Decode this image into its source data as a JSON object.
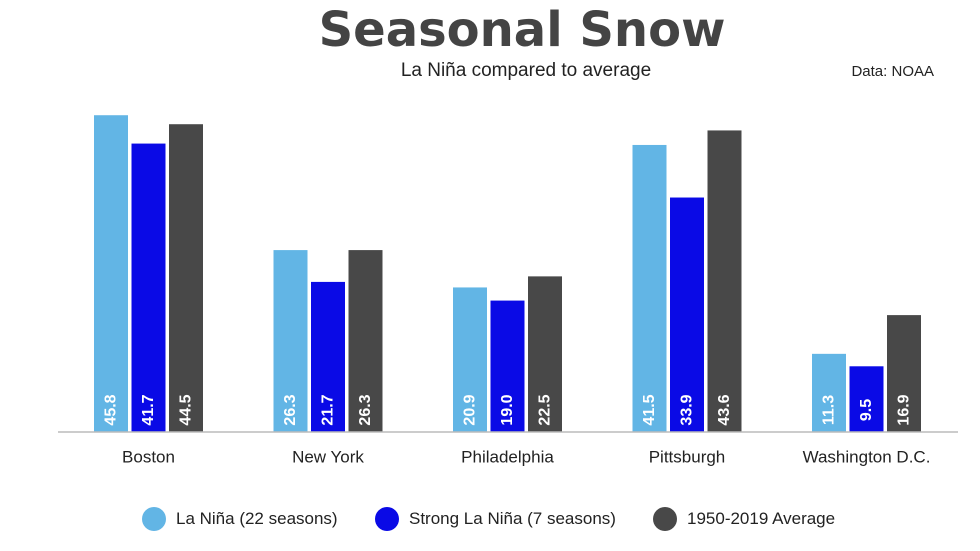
{
  "header": {
    "title": "Seasonal Snow",
    "subtitle": "La Niña compared to average",
    "source": "Data: NOAA"
  },
  "colors": {
    "la_nina": "#62b5e5",
    "strong_la_nina": "#0a0ae6",
    "average": "#484848",
    "axis": "#bbbbbb",
    "label_text": "#ffffff"
  },
  "chart_data": {
    "type": "bar",
    "title": "Seasonal Snow",
    "subtitle": "La Niña compared to average",
    "xlabel": "",
    "ylabel": "",
    "ylim": [
      0,
      48
    ],
    "grid": false,
    "legend_position": "bottom",
    "categories": [
      "Boston",
      "New York",
      "Philadelphia",
      "Pittsburgh",
      "Washington D.C."
    ],
    "series": [
      {
        "name": "La Niña (22 seasons)",
        "values": [
          45.8,
          26.3,
          20.9,
          41.5,
          11.3
        ]
      },
      {
        "name": "Strong La Niña (7 seasons)",
        "values": [
          41.7,
          21.7,
          19.0,
          33.9,
          9.5
        ]
      },
      {
        "name": "1950-2019 Average",
        "values": [
          44.5,
          26.3,
          22.5,
          43.6,
          16.9
        ]
      }
    ],
    "data_labels": [
      [
        "45.8",
        "26.3",
        "20.9",
        "41.5",
        "11.3"
      ],
      [
        "41.7",
        "21.7",
        "19.0",
        "33.9",
        "9.5"
      ],
      [
        "44.5",
        "26.3",
        "22.5",
        "43.6",
        "16.9"
      ]
    ]
  },
  "legend": {
    "items": [
      {
        "label": "La Niña (22 seasons)",
        "color": "#62b5e5"
      },
      {
        "label": "Strong La Niña (7 seasons)",
        "color": "#0a0ae6"
      },
      {
        "label": "1950-2019 Average",
        "color": "#484848"
      }
    ]
  }
}
